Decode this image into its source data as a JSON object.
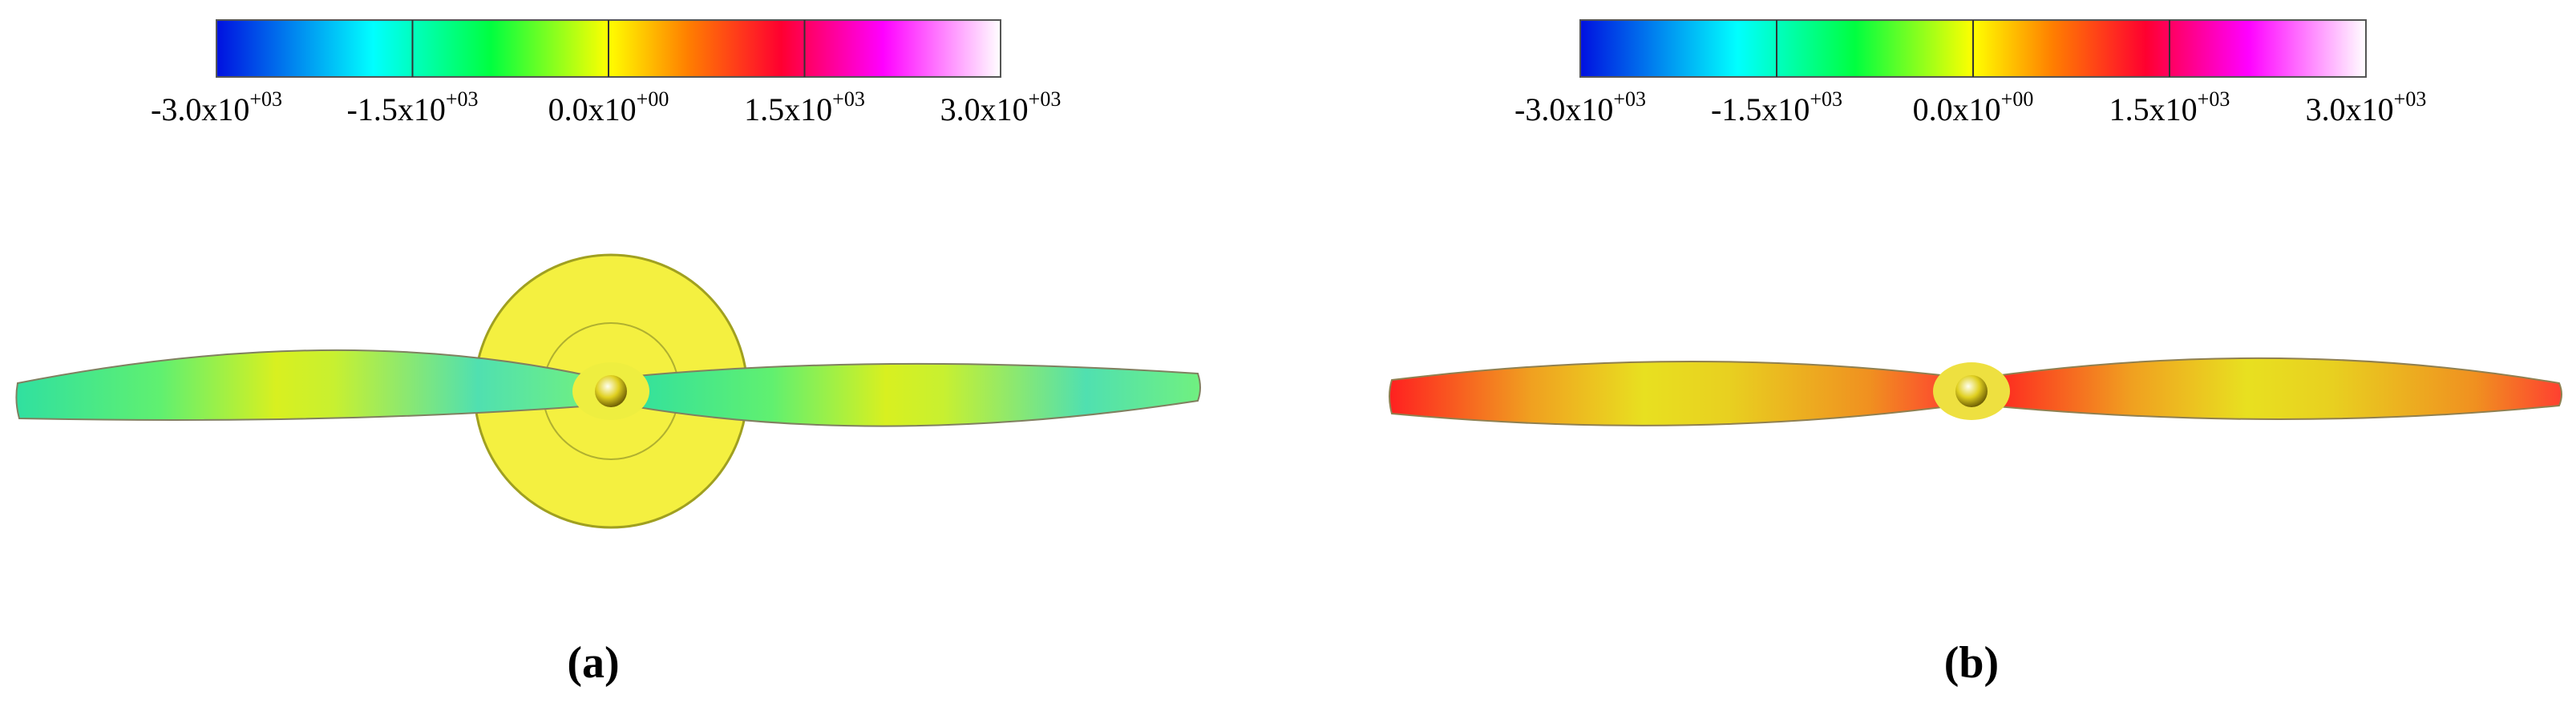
{
  "panels": [
    {
      "label": "(a)",
      "colorbar": {
        "ticks": [
          {
            "base": "-3.0x10",
            "exponent": "+03"
          },
          {
            "base": "-1.5x10",
            "exponent": "+03"
          },
          {
            "base": "0.0x10",
            "exponent": "+00"
          },
          {
            "base": "1.5x10",
            "exponent": "+03"
          },
          {
            "base": "3.0x10",
            "exponent": "+03"
          }
        ]
      }
    },
    {
      "label": "(b)",
      "colorbar": {
        "ticks": [
          {
            "base": "-3.0x10",
            "exponent": "+03"
          },
          {
            "base": "-1.5x10",
            "exponent": "+03"
          },
          {
            "base": "0.0x10",
            "exponent": "+00"
          },
          {
            "base": "1.5x10",
            "exponent": "+03"
          },
          {
            "base": "3.0x10",
            "exponent": "+03"
          }
        ]
      }
    }
  ]
}
